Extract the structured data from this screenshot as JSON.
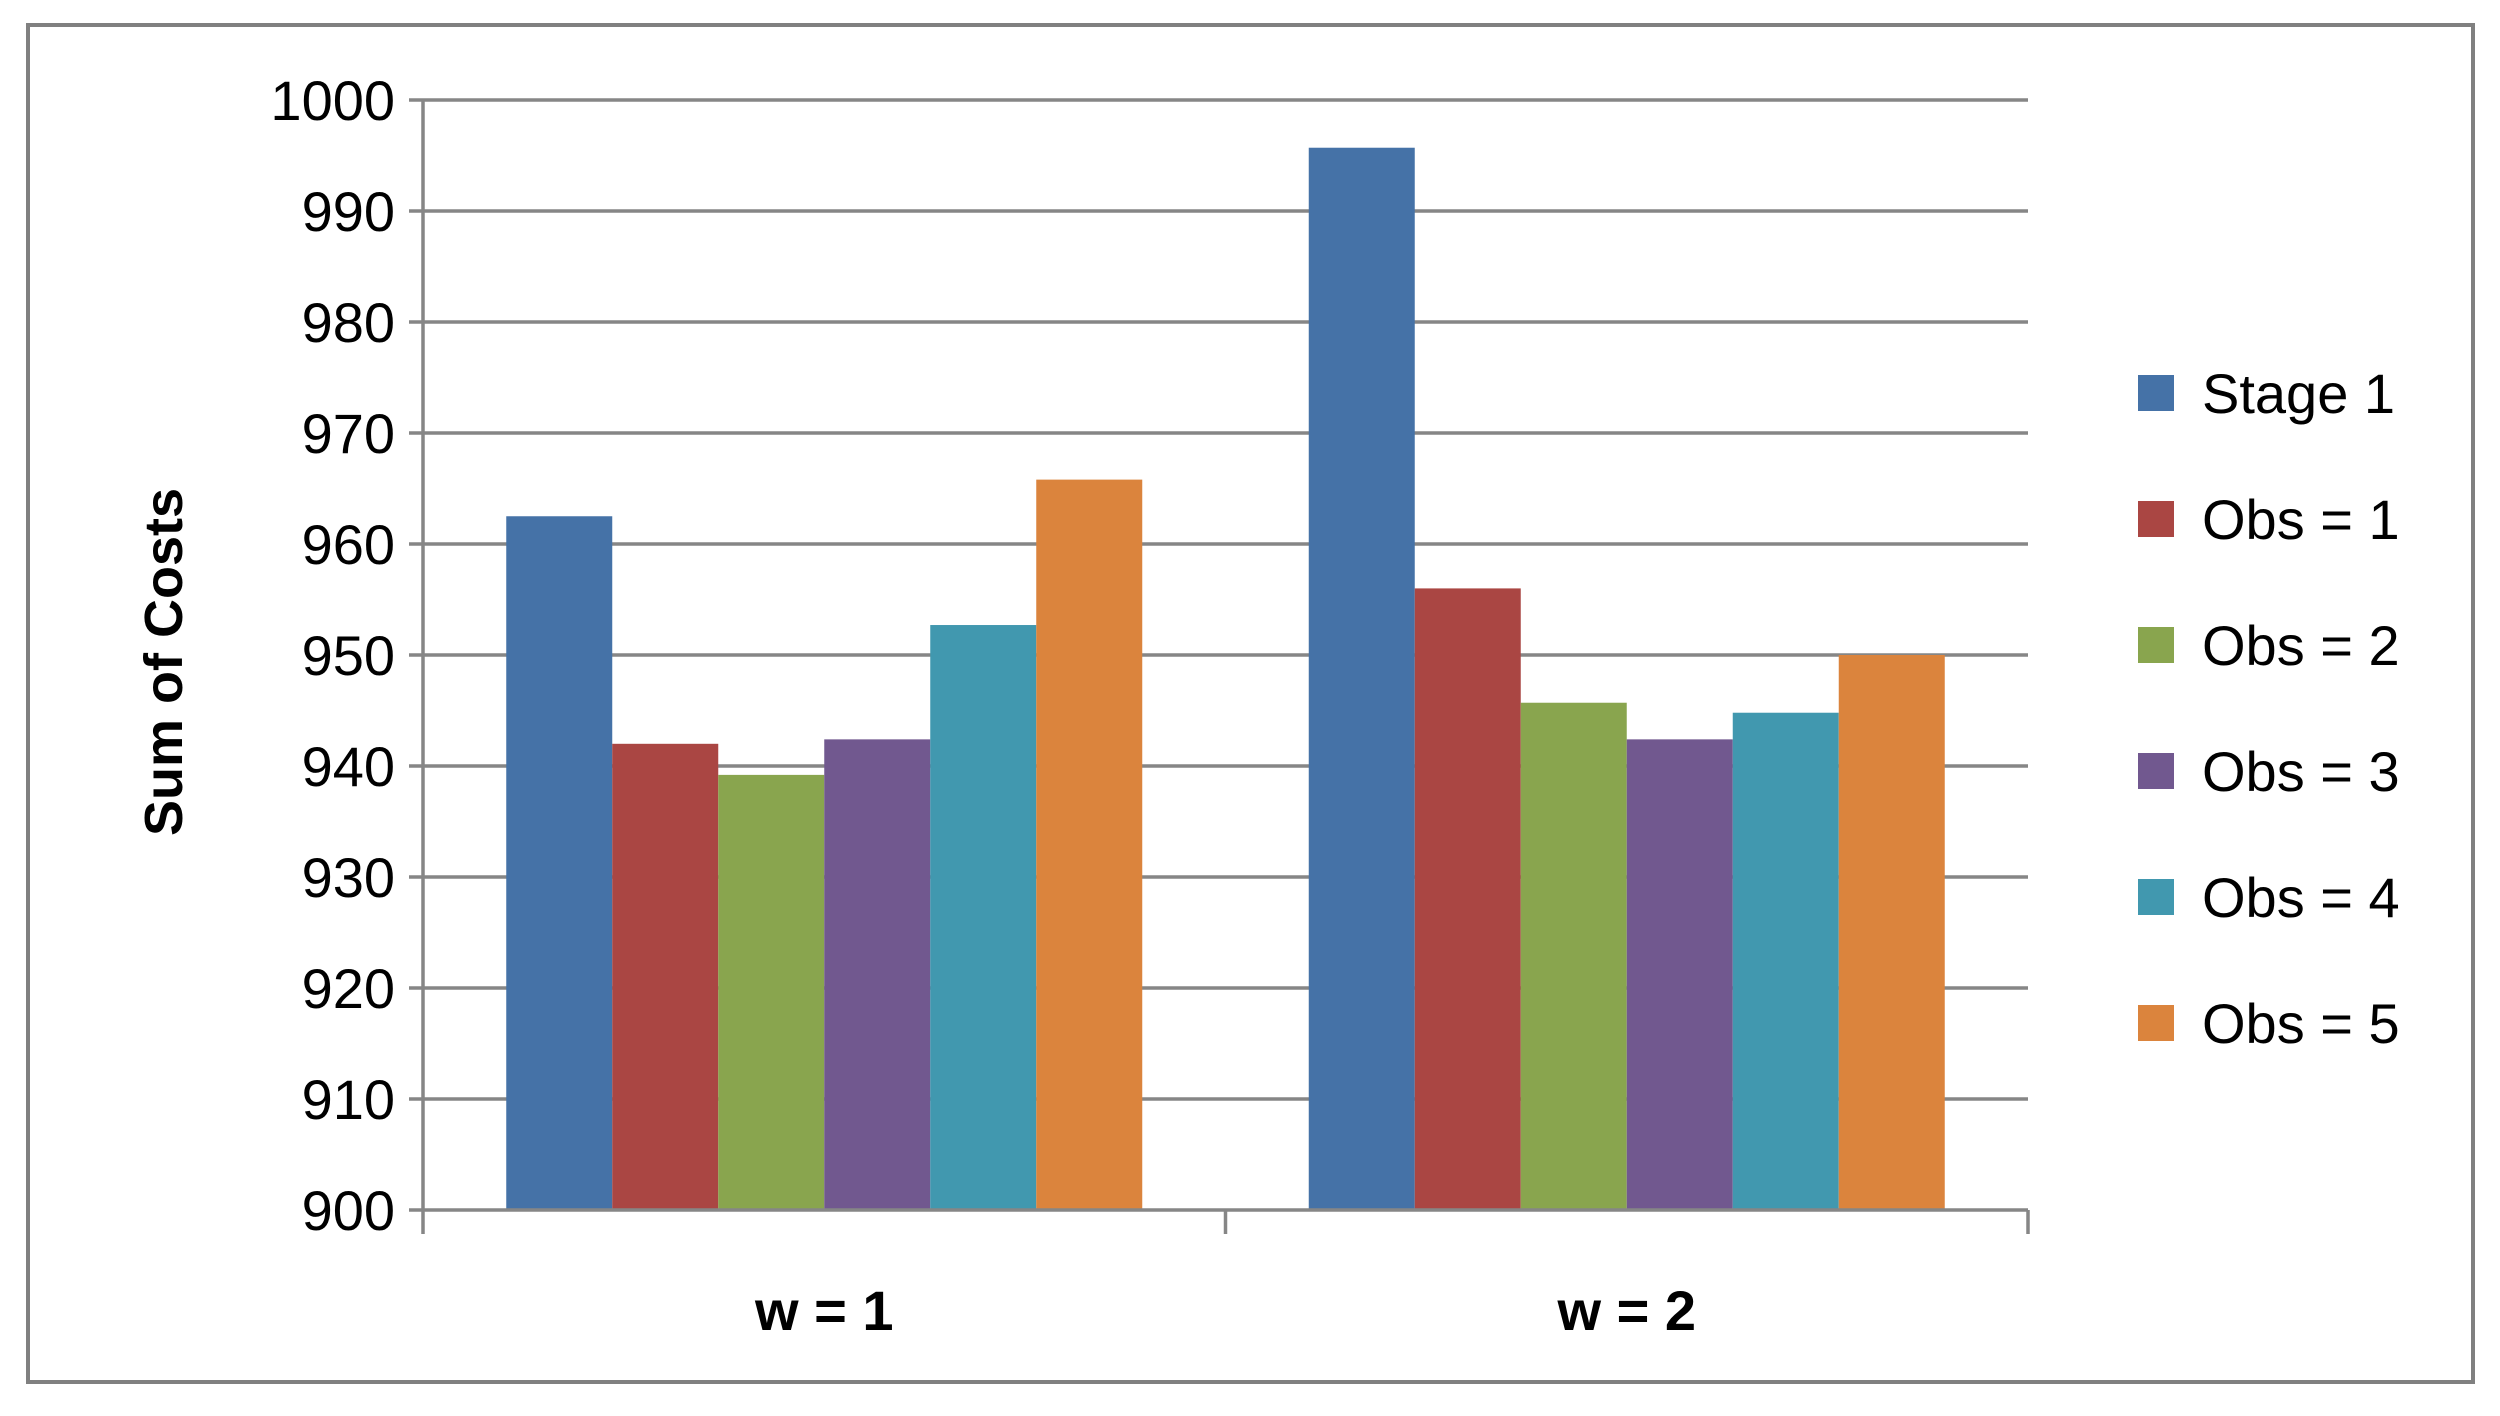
{
  "chart_data": {
    "type": "bar",
    "categories": [
      "w = 1",
      "w = 2"
    ],
    "series": [
      {
        "name": "Stage 1",
        "values": [
          962.5,
          995.7
        ],
        "color": "#4572A7"
      },
      {
        "name": "Obs = 1",
        "values": [
          942.0,
          956.0
        ],
        "color": "#AA4643"
      },
      {
        "name": "Obs = 2",
        "values": [
          939.2,
          945.7
        ],
        "color": "#89A54E"
      },
      {
        "name": "Obs = 3",
        "values": [
          942.4,
          942.4
        ],
        "color": "#71588F"
      },
      {
        "name": "Obs = 4",
        "values": [
          952.7,
          944.8
        ],
        "color": "#4198AF"
      },
      {
        "name": "Obs = 5",
        "values": [
          965.8,
          950.0
        ],
        "color": "#DB843D"
      }
    ],
    "title": "",
    "xlabel": "",
    "ylabel": "Sum of Costs",
    "ylim": [
      900,
      1000
    ],
    "yticks": [
      900,
      910,
      920,
      930,
      940,
      950,
      960,
      970,
      980,
      990,
      1000
    ],
    "grid": true,
    "legend_position": "right"
  }
}
